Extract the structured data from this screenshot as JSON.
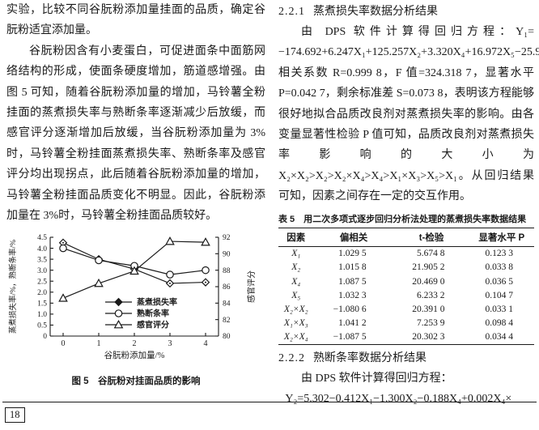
{
  "page": {
    "number": "18"
  },
  "left_column": {
    "paragraph_1": "实验，比较不同谷朊粉添加量挂面的品质，确定谷朊粉适宜添加量。",
    "paragraph_2": "谷朊粉因含有小麦蛋白，可促进面条中面筋网络结构的形成，使面条硬度增加，筋道感增强。由图 5 可知，随着谷朊粉添加量的增加，马铃薯全粉挂面的蒸煮损失率与熟断条率逐渐减少后放缓，而感官评分逐渐增加后放缓，当谷朊粉添加量为 3%时，马铃薯全粉挂面蒸煮损失率、熟断条率及感官评分均出现拐点，此后随着谷朊粉添加量的增加，马铃薯全粉挂面品质变化不明显。因此，谷朊粉添加量在 3%时，马铃薯全粉挂面品质较好。",
    "figure_caption": "图 5　谷朊粉对挂面品质的影响"
  },
  "chart_data": {
    "type": "line",
    "x": [
      0,
      1,
      2,
      3,
      4
    ],
    "xlabel": "谷朊粉添加量/%",
    "ylabel_left": "蒸煮损失率/%，熟断条率/%",
    "ylabel_right": "感官评分",
    "ylim_left": [
      0,
      4.5
    ],
    "yticks_left": [
      0,
      0.5,
      1.0,
      1.5,
      2.0,
      2.5,
      3.0,
      3.5,
      4.0,
      4.5
    ],
    "ylim_right": [
      80,
      92
    ],
    "yticks_right": [
      80,
      82,
      84,
      86,
      88,
      90,
      92
    ],
    "grid": false,
    "legend_position": "inside-bottom",
    "series": [
      {
        "name": "蒸煮损失率",
        "axis": "left",
        "marker": "diamond",
        "values": [
          4.25,
          3.5,
          3.05,
          2.4,
          2.45
        ]
      },
      {
        "name": "熟断条率",
        "axis": "left",
        "marker": "circle",
        "values": [
          4.0,
          3.45,
          3.2,
          2.8,
          3.0
        ]
      },
      {
        "name": "感官评分",
        "axis": "right",
        "marker": "triangle",
        "values": [
          84.6,
          86.4,
          87.9,
          91.5,
          91.4
        ]
      }
    ]
  },
  "right_column": {
    "section_221": {
      "number": "2.2.1",
      "title": "蒸煮损失率数据分析结果",
      "paragraph": "由 DPS 软件计算得回归方程：Y₁= −174.692+6.247X₁+125.257X₂+3.320X₄+16.972X₅−25.989X₂×X₂+0.247X₁×X₃−1.489X₂×X₄。相关系数 R=0.999 8，F 值=324.318 7，显著水平 P=0.042 7，剩余标准差 S=0.073 8，表明该方程能够很好地拟合品质改良剂对蒸煮损失率的影响。由各变量显著性检验 P 值可知，品质改良剂对蒸煮损失率影响的大小为 X₂×X₂>X₂>X₂×X₄>X₄>X₁×X₃>X₅>X₁。从回归结果可知，因素之间存在一定的交互作用。"
    },
    "table5": {
      "caption": "表 5　用二次多项式逐步回归分析法处理的蒸煮损失率数据结果",
      "headers": [
        "因素",
        "偏相关",
        "t-检验",
        "显著水平 P"
      ],
      "rows": [
        [
          "X₁",
          "1.029 5",
          "5.674 8",
          "0.123 3"
        ],
        [
          "X₂",
          "1.015 8",
          "21.905 2",
          "0.033 8"
        ],
        [
          "X₄",
          "1.087 5",
          "20.469 0",
          "0.036 5"
        ],
        [
          "X₅",
          "1.032 3",
          "6.233 2",
          "0.104 7"
        ],
        [
          "X₂×X₂",
          "−1.080 6",
          "20.391 0",
          "0.033 1"
        ],
        [
          "X₁×X₃",
          "1.041 2",
          "7.253 9",
          "0.098 4"
        ],
        [
          "X₂×X₄",
          "−1.087 5",
          "20.302 3",
          "0.034 4"
        ]
      ]
    },
    "section_222": {
      "number": "2.2.2",
      "title": "熟断条率数据分析结果",
      "line_1": "由 DPS 软件计算得回归方程：",
      "line_2": "Y₂=5.302−0.412X₁−1.300X₂−0.188X₄+0.002X₄×"
    }
  }
}
